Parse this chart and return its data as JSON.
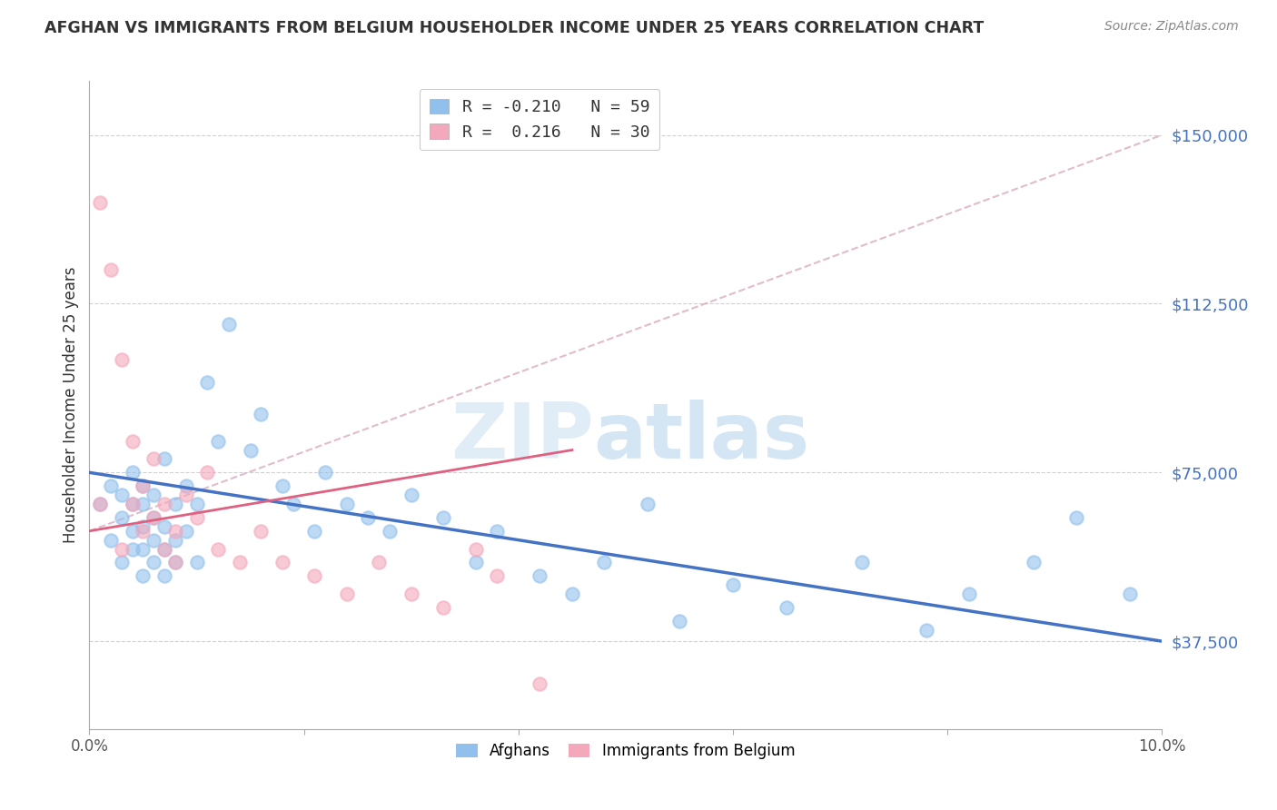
{
  "title": "AFGHAN VS IMMIGRANTS FROM BELGIUM HOUSEHOLDER INCOME UNDER 25 YEARS CORRELATION CHART",
  "source": "Source: ZipAtlas.com",
  "ylabel": "Householder Income Under 25 years",
  "xlim": [
    0.0,
    0.1
  ],
  "ylim": [
    18000,
    162000
  ],
  "yticks": [
    37500,
    75000,
    112500,
    150000
  ],
  "ytick_labels": [
    "$37,500",
    "$75,000",
    "$112,500",
    "$150,000"
  ],
  "xticks": [
    0.0,
    0.02,
    0.04,
    0.06,
    0.08,
    0.1
  ],
  "xtick_labels": [
    "0.0%",
    "",
    "",
    "",
    "",
    "10.0%"
  ],
  "legend_R_blue": "-0.210",
  "legend_N_blue": "59",
  "legend_R_pink": "0.216",
  "legend_N_pink": "30",
  "blue_color": "#92C0EC",
  "pink_color": "#F4A8BB",
  "blue_line_color": "#4472C4",
  "pink_line_color": "#E06080",
  "pink_dash_color": "#D4A0B8",
  "watermark_zip": "ZIP",
  "watermark_atlas": "atlas",
  "blue_scatter_x": [
    0.001,
    0.002,
    0.002,
    0.003,
    0.003,
    0.003,
    0.004,
    0.004,
    0.004,
    0.004,
    0.005,
    0.005,
    0.005,
    0.005,
    0.005,
    0.006,
    0.006,
    0.006,
    0.006,
    0.007,
    0.007,
    0.007,
    0.007,
    0.008,
    0.008,
    0.008,
    0.009,
    0.009,
    0.01,
    0.01,
    0.011,
    0.012,
    0.013,
    0.015,
    0.016,
    0.018,
    0.019,
    0.021,
    0.022,
    0.024,
    0.026,
    0.028,
    0.03,
    0.033,
    0.036,
    0.038,
    0.042,
    0.045,
    0.048,
    0.052,
    0.055,
    0.06,
    0.065,
    0.072,
    0.078,
    0.082,
    0.088,
    0.092,
    0.097
  ],
  "blue_scatter_y": [
    68000,
    72000,
    60000,
    55000,
    65000,
    70000,
    58000,
    62000,
    68000,
    75000,
    52000,
    58000,
    63000,
    68000,
    72000,
    55000,
    60000,
    65000,
    70000,
    52000,
    58000,
    63000,
    78000,
    55000,
    60000,
    68000,
    62000,
    72000,
    55000,
    68000,
    95000,
    82000,
    108000,
    80000,
    88000,
    72000,
    68000,
    62000,
    75000,
    68000,
    65000,
    62000,
    70000,
    65000,
    55000,
    62000,
    52000,
    48000,
    55000,
    68000,
    42000,
    50000,
    45000,
    55000,
    40000,
    48000,
    55000,
    65000,
    48000
  ],
  "pink_scatter_x": [
    0.001,
    0.001,
    0.002,
    0.003,
    0.003,
    0.004,
    0.004,
    0.005,
    0.005,
    0.006,
    0.006,
    0.007,
    0.007,
    0.008,
    0.008,
    0.009,
    0.01,
    0.011,
    0.012,
    0.014,
    0.016,
    0.018,
    0.021,
    0.024,
    0.027,
    0.03,
    0.033,
    0.036,
    0.038,
    0.042
  ],
  "pink_scatter_y": [
    68000,
    135000,
    120000,
    58000,
    100000,
    68000,
    82000,
    62000,
    72000,
    65000,
    78000,
    58000,
    68000,
    55000,
    62000,
    70000,
    65000,
    75000,
    58000,
    55000,
    62000,
    55000,
    52000,
    48000,
    55000,
    48000,
    45000,
    58000,
    52000,
    28000
  ],
  "blue_line_x": [
    0.0,
    0.1
  ],
  "blue_line_y": [
    75000,
    37500
  ],
  "pink_line_x": [
    0.0,
    0.045
  ],
  "pink_line_y": [
    62000,
    80000
  ],
  "pink_dash_line_x": [
    0.0,
    0.1
  ],
  "pink_dash_line_y": [
    62000,
    150000
  ]
}
